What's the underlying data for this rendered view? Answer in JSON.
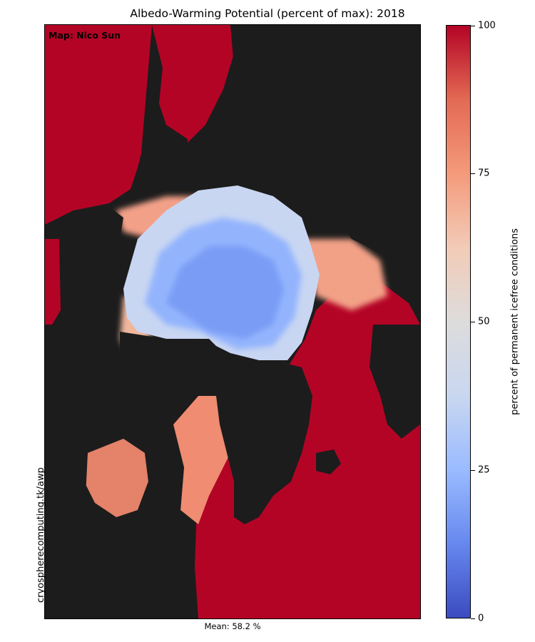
{
  "title": "Albedo-Warming Potential (percent of max): 2018",
  "credit": "Map: Nico Sun",
  "side_note": "cryospherecomputing.tk/awp",
  "mean_label": "Mean: 58.2 %",
  "colorbar": {
    "label": "percent of permanent icefree conditions",
    "min": 0,
    "max": 100,
    "ticks": [
      "0",
      "25",
      "50",
      "75",
      "100"
    ],
    "colormap": "coolwarm",
    "low_color": "#3b4cc0",
    "mid_color": "#dddcdc",
    "high_color": "#b40426"
  },
  "map": {
    "land_color": "#1c1c1c",
    "region": "Arctic Ocean (north polar view)"
  }
}
